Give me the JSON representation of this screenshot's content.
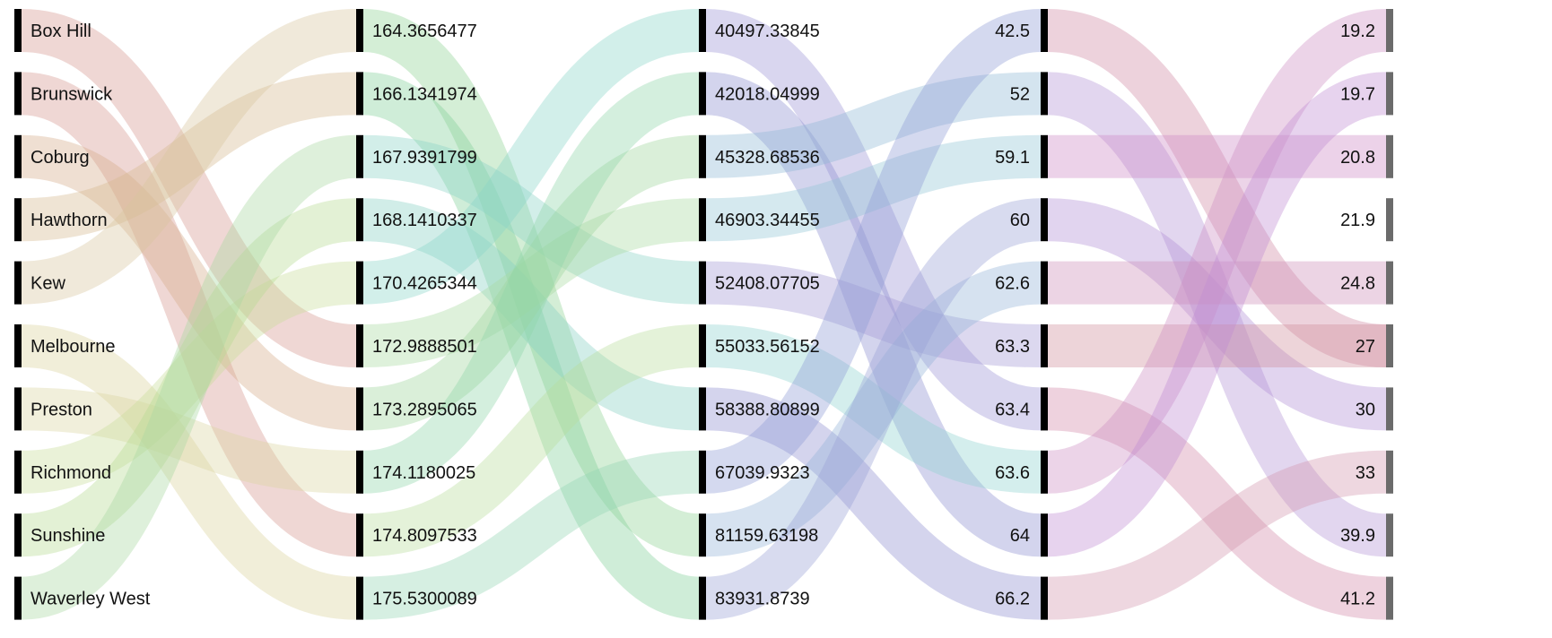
{
  "columns": [
    {
      "id": "suburb",
      "nodes": [
        "Box Hill",
        "Brunswick",
        "Coburg",
        "Hawthorn",
        "Kew",
        "Melbourne",
        "Preston",
        "Richmond",
        "Sunshine",
        "Waverley West"
      ]
    },
    {
      "id": "c2",
      "nodes": [
        "164.3656477",
        "166.1341974",
        "167.9391799",
        "168.1410337",
        "170.4265344",
        "172.9888501",
        "173.2895065",
        "174.1180025",
        "174.8097533",
        "175.5300089"
      ]
    },
    {
      "id": "c3",
      "nodes": [
        "40497.33845",
        "42018.04999",
        "45328.68536",
        "46903.34455",
        "52408.07705",
        "55033.56152",
        "58388.80899",
        "67039.9323",
        "81159.63198",
        "83931.8739"
      ]
    },
    {
      "id": "c4",
      "nodes": [
        "42.5",
        "52",
        "59.1",
        "60",
        "62.6",
        "63.3",
        "63.4",
        "63.6",
        "64",
        "66.2"
      ]
    },
    {
      "id": "c5",
      "nodes": [
        "19.2",
        "19.7",
        "20.8",
        "21.9",
        "24.8",
        "27",
        "30",
        "33",
        "39.9",
        "41.2"
      ]
    }
  ],
  "links": [
    [
      [
        0,
        5,
        "#d4958f"
      ],
      [
        1,
        8,
        "#d4958f"
      ],
      [
        2,
        6,
        "#d4aa8a"
      ],
      [
        3,
        1,
        "#d6b98d"
      ],
      [
        4,
        0,
        "#d8c59e"
      ],
      [
        5,
        9,
        "#d9d39a"
      ],
      [
        6,
        7,
        "#d9d6a0"
      ],
      [
        7,
        4,
        "#c8dc98"
      ],
      [
        8,
        3,
        "#b6d990"
      ],
      [
        9,
        2,
        "#a9d8a0"
      ]
    ],
    [
      [
        0,
        8,
        "#8fd394"
      ],
      [
        1,
        9,
        "#80cf98"
      ],
      [
        2,
        4,
        "#8ad2c6"
      ],
      [
        3,
        6,
        "#85cfc3"
      ],
      [
        4,
        0,
        "#8ad6c8"
      ],
      [
        5,
        3,
        "#a9d9a1"
      ],
      [
        6,
        2,
        "#9dd69a"
      ],
      [
        7,
        1,
        "#8fd4a8"
      ],
      [
        8,
        5,
        "#b9dc9c"
      ],
      [
        9,
        7,
        "#92d4b4"
      ]
    ],
    [
      [
        0,
        6,
        "#9b92d4"
      ],
      [
        1,
        8,
        "#8c8ed0"
      ],
      [
        2,
        1,
        "#8db8d4"
      ],
      [
        3,
        2,
        "#90c4d6"
      ],
      [
        4,
        5,
        "#a399d6"
      ],
      [
        5,
        7,
        "#8fd2d0"
      ],
      [
        6,
        9,
        "#8e8ed0"
      ],
      [
        7,
        0,
        "#8e9ad4"
      ],
      [
        8,
        4,
        "#94b2d8"
      ],
      [
        9,
        3,
        "#98a0d6"
      ]
    ],
    [
      [
        0,
        5,
        "#d08aa4"
      ],
      [
        1,
        8,
        "#b393d4"
      ],
      [
        2,
        2,
        "#cc8ac6"
      ],
      [
        3,
        6,
        "#b18fd4"
      ],
      [
        4,
        4,
        "#cc8fb8"
      ],
      [
        5,
        5,
        "#d08f9c"
      ],
      [
        6,
        9,
        "#d18aa8"
      ],
      [
        7,
        0,
        "#cc8ec2"
      ],
      [
        8,
        1,
        "#c08cd2"
      ],
      [
        9,
        7,
        "#d196ae"
      ]
    ]
  ]
}
